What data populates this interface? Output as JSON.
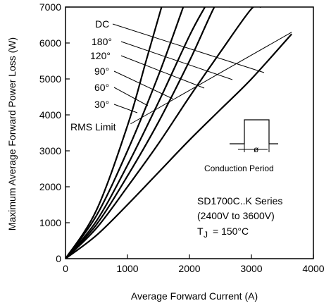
{
  "chart_data": {
    "type": "line",
    "title": "",
    "xlabel": "Average Forward Current (A)",
    "ylabel": "Maximum Average Forward Power Loss (W)",
    "xlim": [
      0,
      4000
    ],
    "ylim": [
      0,
      7000
    ],
    "x_ticks": [
      0,
      1000,
      2000,
      3000,
      4000
    ],
    "y_ticks": [
      0,
      1000,
      2000,
      3000,
      4000,
      5000,
      6000,
      7000
    ],
    "grid": false,
    "series": [
      {
        "name": "30°",
        "x": [
          0,
          500,
          1000,
          1300,
          1550
        ],
        "y": [
          0,
          1350,
          3700,
          5500,
          7000
        ]
      },
      {
        "name": "60°",
        "x": [
          0,
          500,
          1000,
          1500,
          1900
        ],
        "y": [
          0,
          1200,
          3000,
          5100,
          7000
        ]
      },
      {
        "name": "90°",
        "x": [
          0,
          500,
          1000,
          1500,
          2000,
          2250
        ],
        "y": [
          0,
          1050,
          2600,
          4350,
          6200,
          7000
        ]
      },
      {
        "name": "120°",
        "x": [
          0,
          500,
          1000,
          1500,
          2000,
          2500,
          2650
        ],
        "y": [
          0,
          950,
          2300,
          3800,
          5500,
          7300,
          7000
        ]
      },
      {
        "name": "180°",
        "x": [
          0,
          500,
          1000,
          1500,
          2000,
          2500,
          3000,
          3150
        ],
        "y": [
          0,
          850,
          2000,
          3200,
          4500,
          5750,
          6950,
          7000
        ]
      },
      {
        "name": "DC",
        "x": [
          0,
          500,
          1000,
          1500,
          2000,
          2500,
          3000,
          3650
        ],
        "y": [
          0,
          650,
          1500,
          2400,
          3300,
          4150,
          5000,
          6250
        ]
      }
    ],
    "rms_limit": {
      "label": "RMS Limit",
      "x": [
        1050,
        3650
      ],
      "y": [
        3750,
        6300
      ]
    },
    "annotations": {
      "curve_labels": [
        "DC",
        "180°",
        "120°",
        "90°",
        "60°",
        "30°"
      ],
      "conduction_label": "Conduction Period",
      "phi_label": "ø",
      "series_title": "SD1700C..K Series",
      "voltage_range": "(2400V to 3600V)",
      "tj_label": "T",
      "tj_sub": "J",
      "tj_value": "= 150°C"
    }
  }
}
